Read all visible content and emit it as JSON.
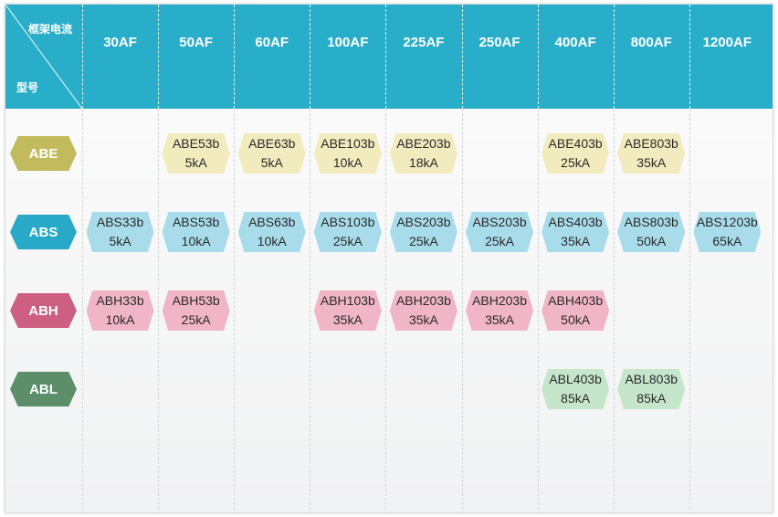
{
  "header": {
    "corner_top": "框架电流",
    "corner_bottom": "型号",
    "columns": [
      "30AF",
      "50AF",
      "60AF",
      "100AF",
      "225AF",
      "250AF",
      "400AF",
      "800AF",
      "1200AF"
    ]
  },
  "rows": [
    {
      "name": "ABE",
      "color": "#c2bb5e",
      "cell_color": "#f2ebbd",
      "cells": [
        null,
        {
          "model": "ABE53b",
          "rating": "5kA"
        },
        {
          "model": "ABE63b",
          "rating": "5kA"
        },
        {
          "model": "ABE103b",
          "rating": "10kA"
        },
        {
          "model": "ABE203b",
          "rating": "18kA"
        },
        null,
        {
          "model": "ABE403b",
          "rating": "25kA"
        },
        {
          "model": "ABE803b",
          "rating": "35kA"
        },
        null
      ]
    },
    {
      "name": "ABS",
      "color": "#27a9c7",
      "cell_color": "#a9dcea",
      "cells": [
        {
          "model": "ABS33b",
          "rating": "5kA"
        },
        {
          "model": "ABS53b",
          "rating": "10kA"
        },
        {
          "model": "ABS63b",
          "rating": "10kA"
        },
        {
          "model": "ABS103b",
          "rating": "25kA"
        },
        {
          "model": "ABS203b",
          "rating": "25kA"
        },
        {
          "model": "ABS203b",
          "rating": "25kA"
        },
        {
          "model": "ABS403b",
          "rating": "35kA"
        },
        {
          "model": "ABS803b",
          "rating": "50kA"
        },
        {
          "model": "ABS1203b",
          "rating": "65kA"
        }
      ]
    },
    {
      "name": "ABH",
      "color": "#cc5f82",
      "cell_color": "#f0b5c6",
      "cells": [
        {
          "model": "ABH33b",
          "rating": "10kA"
        },
        {
          "model": "ABH53b",
          "rating": "25kA"
        },
        null,
        {
          "model": "ABH103b",
          "rating": "35kA"
        },
        {
          "model": "ABH203b",
          "rating": "35kA"
        },
        {
          "model": "ABH203b",
          "rating": "35kA"
        },
        {
          "model": "ABH403b",
          "rating": "50kA"
        },
        null,
        null
      ]
    },
    {
      "name": "ABL",
      "color": "#5c8e69",
      "cell_color": "#c6e6cc",
      "cells": [
        null,
        null,
        null,
        null,
        null,
        null,
        {
          "model": "ABL403b",
          "rating": "85kA"
        },
        {
          "model": "ABL803b",
          "rating": "85kA"
        },
        null
      ]
    }
  ]
}
